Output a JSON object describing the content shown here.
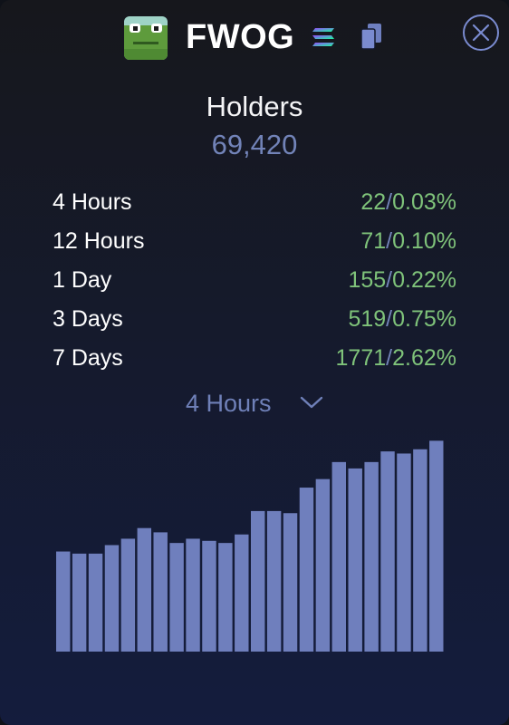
{
  "token": {
    "name": "FWOG",
    "icon": "frog-avatar-icon",
    "chain_icon": "solana-icon",
    "copy_icon": "copy-icon",
    "close_icon": "close-icon"
  },
  "holders": {
    "title": "Holders",
    "count": "69,420"
  },
  "stats": [
    {
      "label": "4 Hours",
      "count": "22",
      "percent": "0.03%"
    },
    {
      "label": "12 Hours",
      "count": "71",
      "percent": "0.10%"
    },
    {
      "label": "1 Day",
      "count": "155",
      "percent": "0.22%"
    },
    {
      "label": "3 Days",
      "count": "519",
      "percent": "0.75%"
    },
    {
      "label": "7 Days",
      "count": "1771",
      "percent": "2.62%"
    }
  ],
  "separator": "/",
  "range_select": {
    "selected": "4 Hours",
    "icon": "chevron-down-icon"
  },
  "colors": {
    "accent": "#7283b8",
    "positive": "#7fc37a",
    "bar": "#6f7fbd"
  },
  "chart_data": {
    "type": "bar",
    "ylim": [
      0,
      100
    ],
    "values": [
      47,
      46,
      46,
      50,
      53,
      58,
      56,
      51,
      53,
      52,
      51,
      55,
      66,
      66,
      65,
      77,
      81,
      89,
      86,
      89,
      94,
      93,
      95,
      99
    ]
  }
}
